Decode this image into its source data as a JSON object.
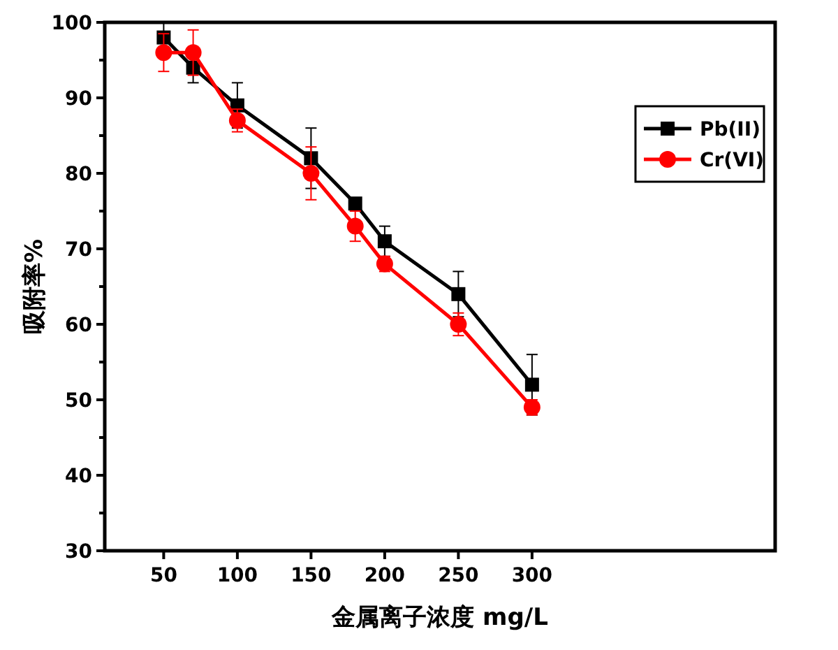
{
  "chart_data": {
    "type": "line",
    "xlabel": "金属离子浓度 mg/L",
    "ylabel": "吸附率%",
    "x": [
      50,
      70,
      100,
      150,
      180,
      200,
      250,
      300
    ],
    "xlim": [
      10,
      465
    ],
    "xticks": [
      50,
      100,
      150,
      200,
      250,
      300
    ],
    "ylim": [
      30,
      100
    ],
    "yticks": [
      30,
      40,
      50,
      60,
      70,
      80,
      90,
      100
    ],
    "legend": "top right",
    "grid": false,
    "line_style": "solid",
    "series": [
      {
        "name": "Pb(II)",
        "color": "#000000",
        "marker": "square",
        "values": [
          98,
          94,
          89,
          82,
          76,
          71,
          64,
          52
        ],
        "errors": [
          2,
          2,
          3,
          4,
          0.5,
          2,
          3,
          4
        ]
      },
      {
        "name": "Cr(VI)",
        "color": "#ff0000",
        "marker": "circle",
        "values": [
          96,
          96,
          87,
          80,
          73,
          68,
          60,
          49
        ],
        "errors": [
          2.5,
          3,
          1.5,
          3.5,
          2,
          1,
          1.5,
          1
        ]
      }
    ]
  }
}
